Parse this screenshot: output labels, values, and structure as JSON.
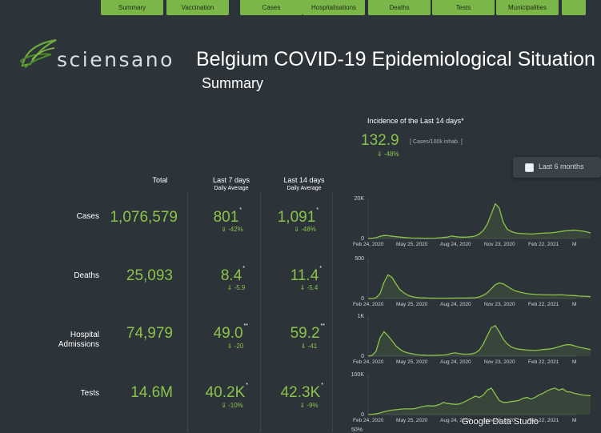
{
  "nav": {
    "tabs": [
      {
        "label": "Summary"
      },
      {
        "label": "Vaccination"
      },
      {
        "label": "Cases"
      },
      {
        "label": "Hospitalisations"
      },
      {
        "label": "Deaths"
      },
      {
        "label": "Tests"
      },
      {
        "label": "Municipalities"
      },
      {
        "label": ""
      }
    ]
  },
  "header": {
    "logo_text": "sciensano",
    "title": "Belgium COVID-19 Epidemiological Situation",
    "subtitle": "Summary"
  },
  "incidence": {
    "title": "Incidence of the Last 14 days*",
    "value": "132.9",
    "unit": "[ Cases/100k inhab. ]",
    "change": "⇓ -48%"
  },
  "filter": {
    "label": "Last 6 months"
  },
  "columns": {
    "total": "Total",
    "last7": "Last 7 days",
    "last7_sub": "Daily Average",
    "last14": "Last 14 days",
    "last14_sub": "Daily Average"
  },
  "rows": [
    {
      "label": "Cases",
      "total": "1,076,579",
      "last7": "801",
      "last7_mark": "*",
      "last7_change": "⇓ -42%",
      "last14": "1,091",
      "last14_mark": "*",
      "last14_change": "⇓ -48%"
    },
    {
      "label": "Deaths",
      "total": "25,093",
      "last7": "8.4",
      "last7_mark": "*",
      "last7_change": "⇓ -5.9",
      "last14": "11.4",
      "last14_mark": "*",
      "last14_change": "⇓ -5.4"
    },
    {
      "label": "Hospital Admissions",
      "total": "74,979",
      "last7": "49.0",
      "last7_mark": "**",
      "last7_change": "⇓ -20",
      "last14": "59.2",
      "last14_mark": "**",
      "last14_change": "⇓ -41"
    },
    {
      "label": "Tests",
      "total": "14.6M",
      "last7": "40.2K",
      "last7_mark": "*",
      "last7_change": "⇓ -10%",
      "last14": "42.3K",
      "last14_mark": "*",
      "last14_change": "⇓ -9%"
    }
  ],
  "x_ticks": [
    "Feb 24, 2020",
    "May 25, 2020",
    "Aug 24, 2020",
    "Nov 23, 2020",
    "Feb 22, 2021",
    "M"
  ],
  "chart_data": [
    {
      "type": "area",
      "series_key": "cases",
      "ymax_label": "20K",
      "ymin_label": "0",
      "ylim": [
        0,
        20000
      ],
      "values": [
        0,
        100,
        400,
        1100,
        1500,
        1400,
        1100,
        900,
        700,
        500,
        350,
        250,
        200,
        180,
        160,
        150,
        160,
        200,
        300,
        500,
        700,
        1200,
        900,
        700,
        650,
        700,
        900,
        1300,
        2200,
        4000,
        7000,
        12000,
        17000,
        15000,
        8000,
        4500,
        3500,
        2800,
        2500,
        2400,
        2300,
        2200,
        2300,
        2500,
        2600,
        2700,
        2800,
        3000,
        3300,
        3600,
        3900,
        4000,
        4100,
        3900,
        3600,
        3200,
        2800
      ]
    },
    {
      "type": "area",
      "series_key": "deaths",
      "ymax_label": "500",
      "ymin_label": "0",
      "ylim": [
        0,
        500
      ],
      "values": [
        0,
        0,
        10,
        60,
        200,
        290,
        260,
        180,
        110,
        70,
        40,
        25,
        15,
        10,
        8,
        6,
        5,
        5,
        5,
        5,
        5,
        5,
        6,
        6,
        6,
        7,
        8,
        10,
        20,
        40,
        70,
        120,
        170,
        190,
        180,
        150,
        120,
        95,
        80,
        70,
        60,
        55,
        50,
        48,
        45,
        45,
        44,
        44,
        45,
        45,
        40,
        38,
        36,
        30,
        28,
        26,
        24
      ]
    },
    {
      "type": "area",
      "series_key": "hospital",
      "ymax_label": "1K",
      "ymin_label": "0",
      "ylim": [
        0,
        1000
      ],
      "values": [
        0,
        20,
        120,
        450,
        600,
        500,
        380,
        250,
        170,
        110,
        80,
        60,
        40,
        30,
        25,
        20,
        20,
        22,
        25,
        30,
        40,
        70,
        80,
        60,
        50,
        50,
        55,
        80,
        150,
        300,
        500,
        700,
        750,
        600,
        420,
        300,
        230,
        190,
        170,
        160,
        150,
        145,
        140,
        150,
        160,
        170,
        180,
        200,
        230,
        260,
        280,
        280,
        250,
        220,
        200,
        180,
        160
      ]
    },
    {
      "type": "area",
      "series_key": "tests",
      "ymax_label": "100K",
      "ymin_label": "0",
      "ylim": [
        0,
        100000
      ],
      "values": [
        0,
        500,
        2000,
        4000,
        7000,
        9000,
        11000,
        12000,
        13000,
        14000,
        14000,
        14000,
        15000,
        18000,
        20000,
        22000,
        21000,
        22000,
        25000,
        30000,
        27000,
        26000,
        25000,
        26000,
        30000,
        35000,
        40000,
        45000,
        42000,
        48000,
        60000,
        65000,
        50000,
        35000,
        30000,
        30000,
        32000,
        33000,
        35000,
        40000,
        42000,
        38000,
        42000,
        48000,
        52000,
        58000,
        62000,
        65000,
        60000,
        63000,
        56000,
        55000,
        52000,
        50000,
        48000,
        47000,
        46000
      ]
    }
  ],
  "partial_chart": {
    "ymax_label": "50%"
  },
  "footer": {
    "brand": "Google Data Studio"
  }
}
